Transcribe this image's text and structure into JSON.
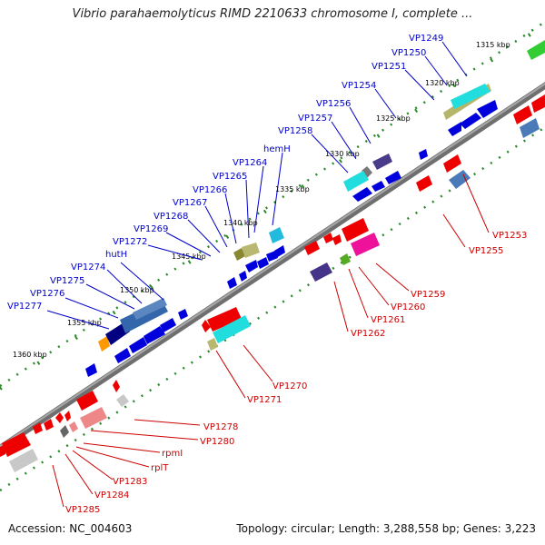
{
  "title": "Vibrio parahaemolyticus RIMD 2210633 chromosome I, complete ...",
  "footer": {
    "accession": "Accession: NC_004603",
    "topology": "Topology: circular; Length: 3,288,558 bp; Genes: 3,223"
  },
  "colors": {
    "forward_label": "#0000cc",
    "reverse_label": "#cc0000",
    "backbone": "#808080",
    "ticks": "#228822"
  },
  "scale_labels": [
    "1315 kbp",
    "1320 kbp",
    "1325 kbp",
    "1330 kbp",
    "1335 kbp",
    "1340 kbp",
    "1345 kbp",
    "1350 kbp",
    "1355 kbp",
    "1360 kbp"
  ],
  "forward_genes": [
    "VP1249",
    "VP1250",
    "VP1251",
    "VP1254",
    "VP1256",
    "VP1257",
    "VP1258",
    "hemH",
    "VP1264",
    "VP1265",
    "VP1266",
    "VP1267",
    "VP1268",
    "VP1269",
    "VP1272",
    "hutH",
    "VP1274",
    "VP1275",
    "VP1276",
    "VP1277"
  ],
  "reverse_genes": [
    "VP1253",
    "VP1255",
    "VP1259",
    "VP1260",
    "VP1261",
    "VP1262",
    "VP1270",
    "VP1271",
    "VP1278",
    "VP1280",
    "rpmI",
    "rplT",
    "VP1283",
    "VP1284",
    "VP1285"
  ]
}
